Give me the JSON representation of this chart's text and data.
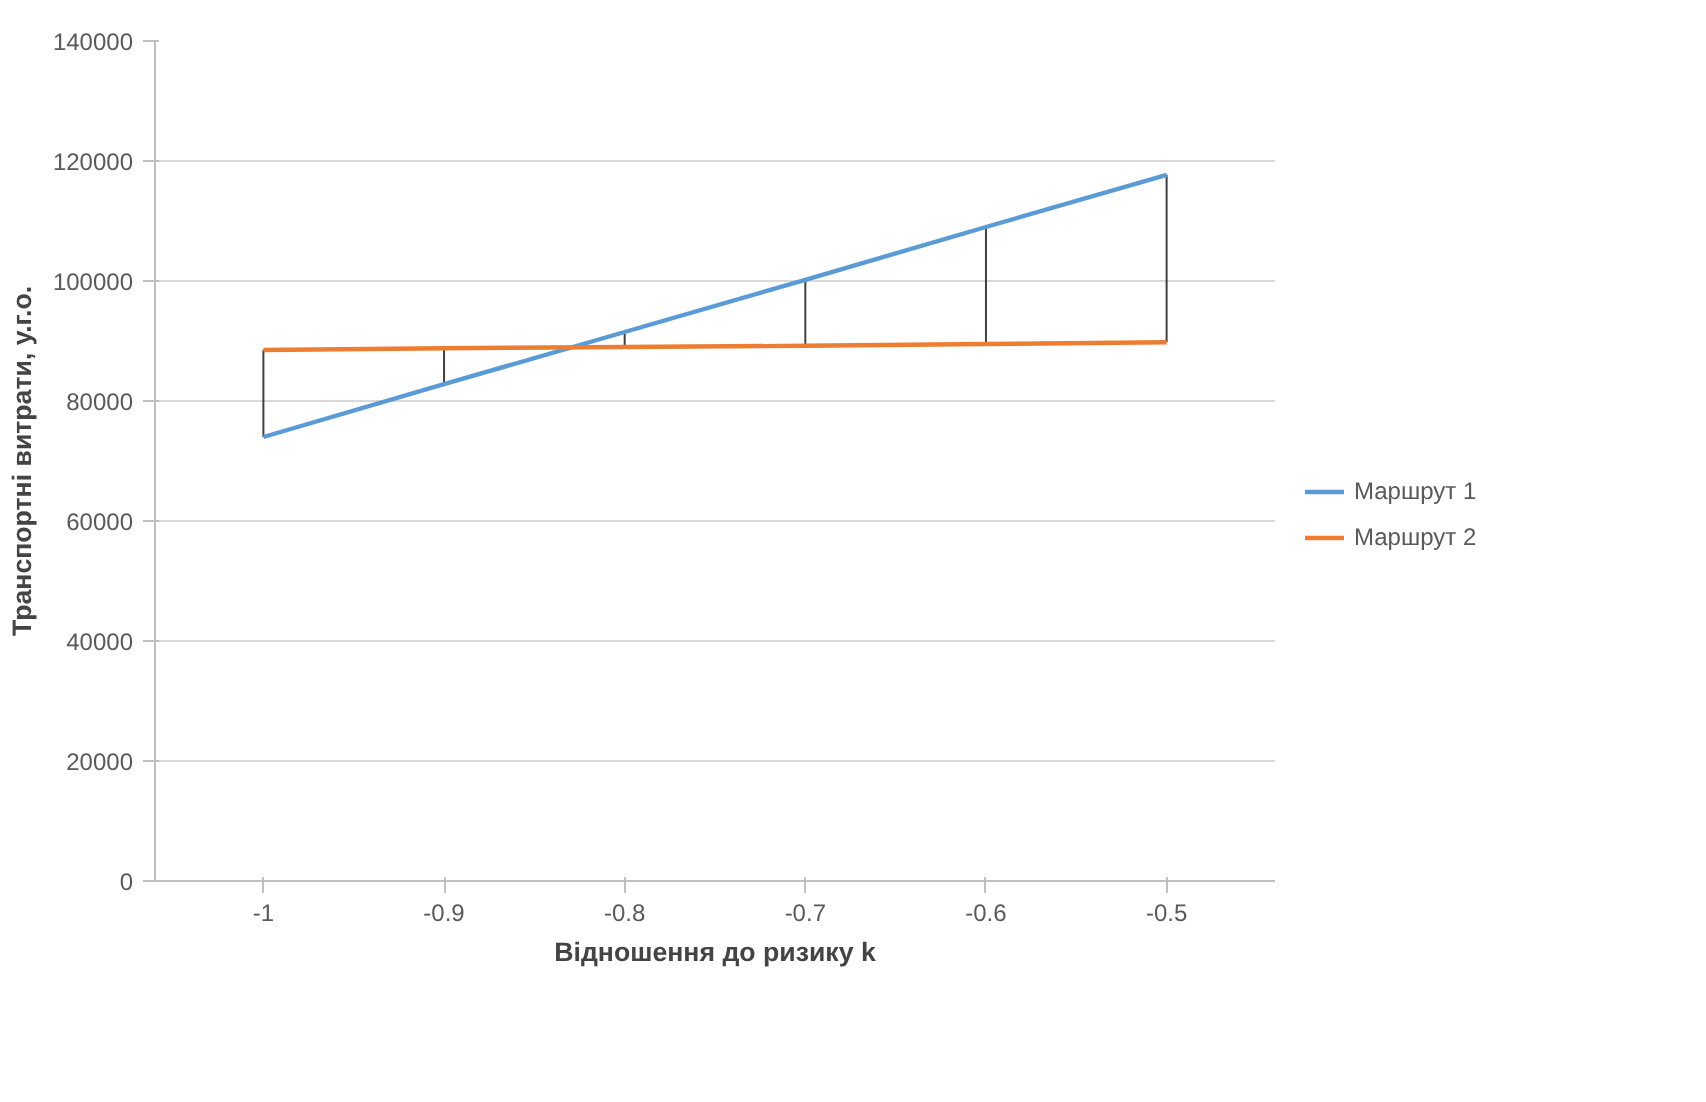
{
  "chart_data": {
    "type": "line",
    "xlabel": "Відношення до ризику k",
    "ylabel": "Транспортні витрати, у.г.о.",
    "categories": [
      "-1",
      "-0.9",
      "-0.8",
      "-0.7",
      "-0.6",
      "-0.5"
    ],
    "series": [
      {
        "name": "Маршрут 1",
        "color": "#5b9bd5",
        "values": [
          74000,
          82800,
          91500,
          100200,
          109000,
          117700
        ],
        "errors": [
          [
            74000,
            88500
          ],
          [
            82800,
            88800
          ],
          [
            89000,
            91500
          ],
          [
            89200,
            100200
          ],
          [
            89500,
            109000
          ],
          [
            89800,
            117700
          ]
        ]
      },
      {
        "name": "Маршрут 2",
        "color": "#ed7d31",
        "values": [
          88500,
          88800,
          89000,
          89200,
          89500,
          89800
        ]
      }
    ],
    "ylim": [
      0,
      140000
    ],
    "yticks": [
      0,
      20000,
      40000,
      60000,
      80000,
      100000,
      120000,
      140000
    ],
    "grid": "y",
    "legend": "right"
  }
}
